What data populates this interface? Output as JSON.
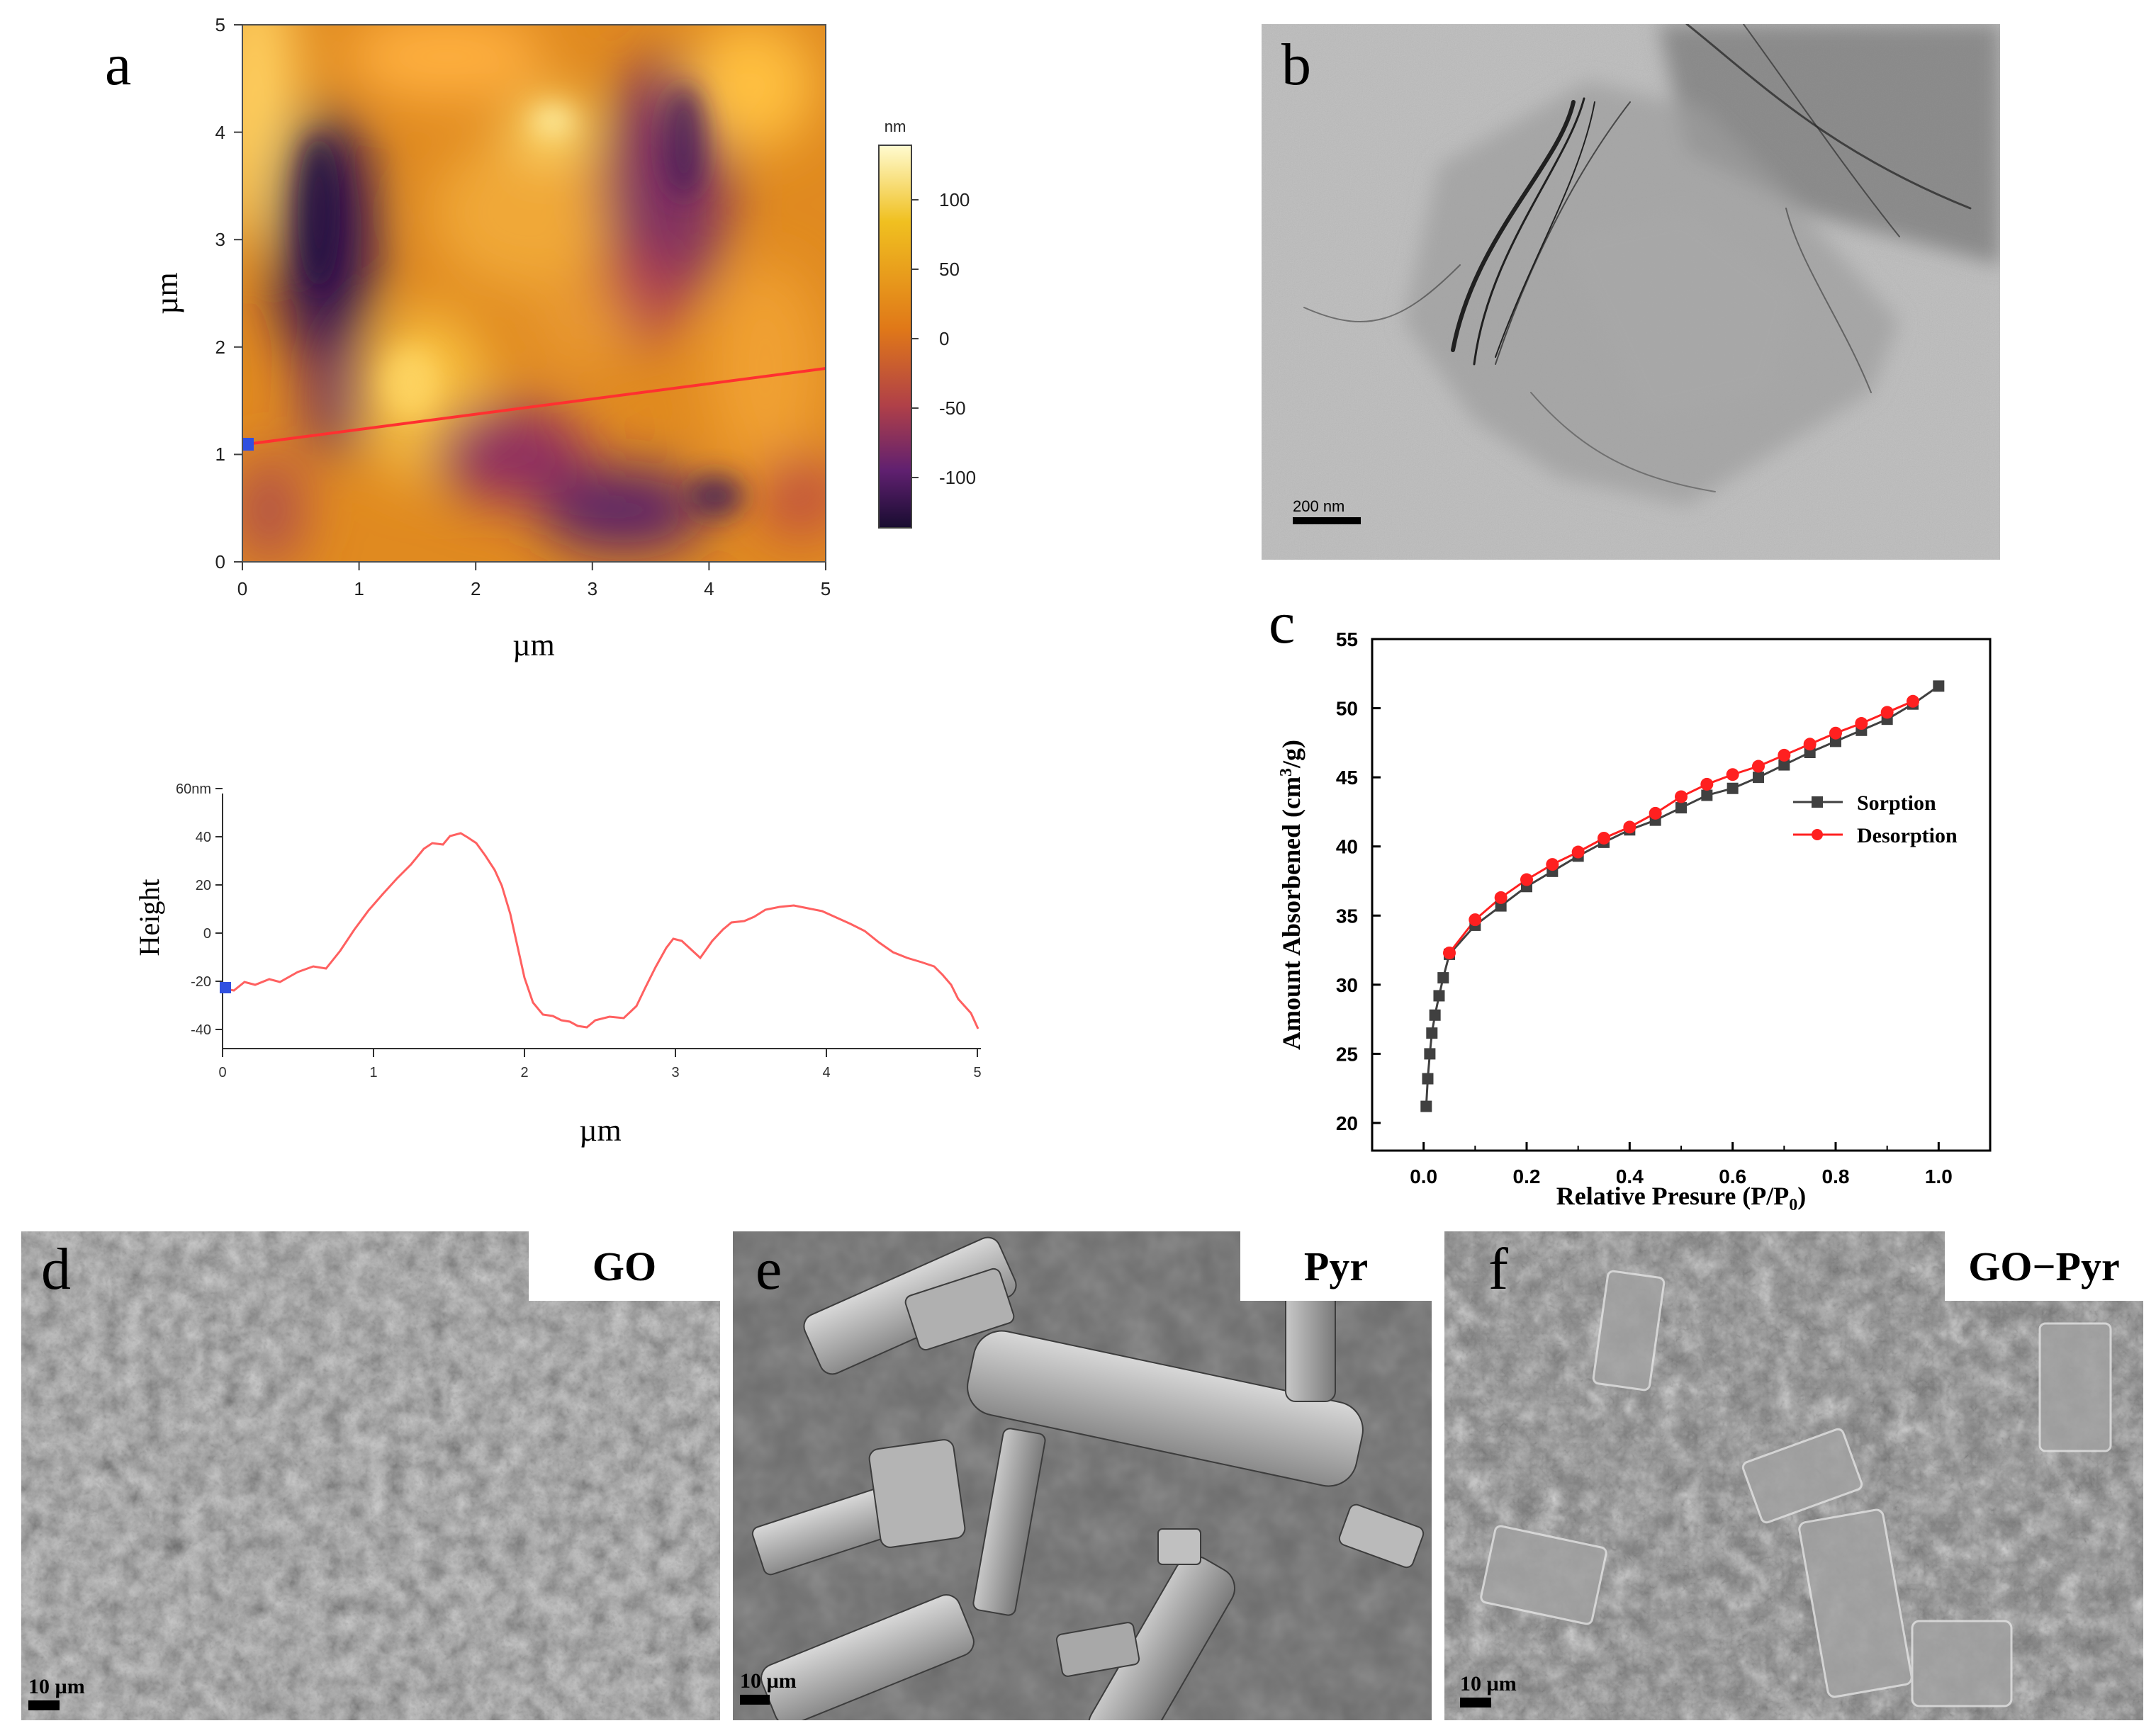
{
  "panels": {
    "a": {
      "letter": "a",
      "afm_map": {
        "x_label": "µm",
        "y_label": "µm",
        "x_ticks": [
          "0",
          "1",
          "2",
          "3",
          "4",
          "5"
        ],
        "y_ticks": [
          "0",
          "1",
          "2",
          "3",
          "4",
          "5"
        ],
        "colorbar": {
          "unit": "nm",
          "ticks": [
            "100",
            "50",
            "0",
            "-50",
            "-100"
          ],
          "colors": [
            "#fffbd0",
            "#f0c020",
            "#e07818",
            "#b04048",
            "#602070",
            "#180c30"
          ]
        }
      },
      "profile": {
        "y_label": "Height",
        "x_label": "µm",
        "y_ticks": [
          "60nm",
          "40",
          "20",
          "0",
          "-20",
          "-40"
        ],
        "x_ticks": [
          "0",
          "1",
          "2",
          "3",
          "4",
          "5"
        ],
        "line_color": "#ff6060"
      }
    },
    "b": {
      "letter": "b",
      "scale_text": "200 nm"
    },
    "c": {
      "letter": "c",
      "chart_data": {
        "type": "line",
        "xlabel": "Relative Presure (P/P0)",
        "ylabel": "Amount Absorbened (cm3/g)",
        "xlim": [
          -0.1,
          1.1
        ],
        "ylim": [
          18,
          55
        ],
        "x_ticks": [
          "0.0",
          "0.2",
          "0.4",
          "0.6",
          "0.8",
          "1.0"
        ],
        "y_ticks": [
          "20",
          "25",
          "30",
          "35",
          "40",
          "45",
          "50",
          "55"
        ],
        "legend_position": "right",
        "series": [
          {
            "name": "Sorption",
            "color": "#404040",
            "marker": "square",
            "x": [
              0.005,
              0.008,
              0.012,
              0.016,
              0.022,
              0.03,
              0.038,
              0.05,
              0.1,
              0.15,
              0.2,
              0.25,
              0.3,
              0.35,
              0.4,
              0.45,
              0.5,
              0.55,
              0.6,
              0.65,
              0.7,
              0.75,
              0.8,
              0.85,
              0.9,
              0.95,
              1.0
            ],
            "y": [
              21.2,
              23.2,
              25.0,
              26.5,
              27.8,
              29.2,
              30.5,
              32.2,
              34.3,
              35.7,
              37.1,
              38.2,
              39.3,
              40.3,
              41.2,
              41.9,
              42.8,
              43.7,
              44.2,
              45.0,
              45.9,
              46.8,
              47.6,
              48.4,
              49.2,
              50.3,
              51.6
            ]
          },
          {
            "name": "Desorption",
            "color": "#ff2020",
            "marker": "circle",
            "x": [
              0.05,
              0.1,
              0.15,
              0.2,
              0.25,
              0.3,
              0.35,
              0.4,
              0.45,
              0.5,
              0.55,
              0.6,
              0.65,
              0.7,
              0.75,
              0.8,
              0.85,
              0.9,
              0.95
            ],
            "y": [
              32.3,
              34.7,
              36.3,
              37.6,
              38.7,
              39.6,
              40.6,
              41.4,
              42.4,
              43.6,
              44.5,
              45.2,
              45.8,
              46.6,
              47.4,
              48.2,
              48.9,
              49.7,
              50.5
            ]
          }
        ]
      }
    },
    "d": {
      "letter": "d",
      "label": "GO",
      "scale_text": "10 µm"
    },
    "e": {
      "letter": "e",
      "label": "Pyr",
      "scale_text": "10 µm"
    },
    "f": {
      "letter": "f",
      "label": "GO−Pyr",
      "scale_text": "10 µm"
    }
  }
}
